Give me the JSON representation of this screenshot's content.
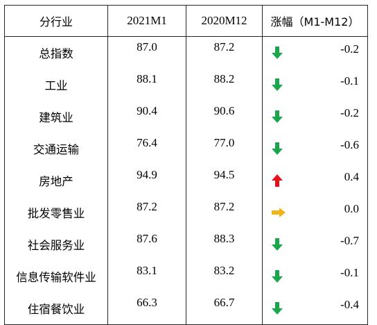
{
  "table": {
    "headers": {
      "industry": "分行业",
      "current": "2021M1",
      "previous": "2020M12",
      "change": "涨幅（M1-M12）"
    },
    "rows": [
      {
        "industry": "总指数",
        "current": "87.0",
        "previous": "87.2",
        "change": "-0.2",
        "direction": "down",
        "arrow_color": "#1aa64a"
      },
      {
        "industry": "工业",
        "current": "88.1",
        "previous": "88.2",
        "change": "-0.1",
        "direction": "down",
        "arrow_color": "#1aa64a"
      },
      {
        "industry": "建筑业",
        "current": "90.4",
        "previous": "90.6",
        "change": "-0.2",
        "direction": "down",
        "arrow_color": "#1aa64a"
      },
      {
        "industry": "交通运输",
        "current": "76.4",
        "previous": "77.0",
        "change": "-0.6",
        "direction": "down",
        "arrow_color": "#1aa64a"
      },
      {
        "industry": "房地产",
        "current": "94.9",
        "previous": "94.5",
        "change": "0.4",
        "direction": "up",
        "arrow_color": "#e8101a"
      },
      {
        "industry": "批发零售业",
        "current": "87.2",
        "previous": "87.2",
        "change": "0.0",
        "direction": "flat",
        "arrow_color": "#f2b418"
      },
      {
        "industry": "社会服务业",
        "current": "87.6",
        "previous": "88.3",
        "change": "-0.7",
        "direction": "down",
        "arrow_color": "#1aa64a"
      },
      {
        "industry": "信息传输软件业",
        "current": "83.1",
        "previous": "83.2",
        "change": "-0.1",
        "direction": "down",
        "arrow_color": "#1aa64a"
      },
      {
        "industry": "住宿餐饮业",
        "current": "66.3",
        "previous": "66.7",
        "change": "-0.4",
        "direction": "down",
        "arrow_color": "#1aa64a"
      }
    ]
  }
}
